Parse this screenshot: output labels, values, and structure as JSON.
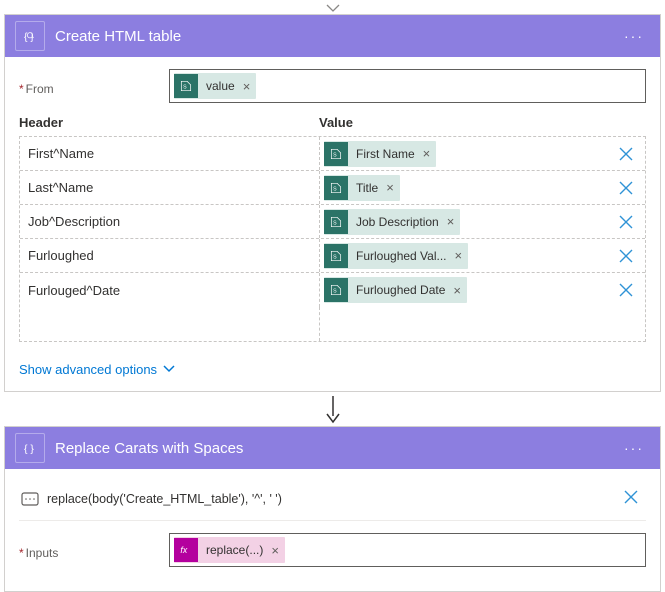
{
  "colors": {
    "header_bg": "#8c7ee0",
    "sharepoint_bg": "#2b7367",
    "sharepoint_token_bg": "#d7e8e4",
    "fx_bg": "#b4009e",
    "fx_token_bg": "#f3d1e5",
    "link": "#0078d4",
    "delete_x": "#2f93d6"
  },
  "action1": {
    "title": "Create HTML table",
    "from_label": "From",
    "from_token": "value",
    "header_col_label": "Header",
    "value_col_label": "Value",
    "rows": [
      {
        "header": "First^Name",
        "value_token": "First Name"
      },
      {
        "header": "Last^Name",
        "value_token": "Title"
      },
      {
        "header": "Job^Description",
        "value_token": "Job Description"
      },
      {
        "header": "Furloughed",
        "value_token": "Furloughed Val..."
      },
      {
        "header": "Furlouged^Date",
        "value_token": "Furloughed Date"
      }
    ],
    "advanced_link": "Show advanced options"
  },
  "action2": {
    "title": "Replace Carats with Spaces",
    "expression": "replace(body('Create_HTML_table'), '^', ' ')",
    "inputs_label": "Inputs",
    "inputs_token": "replace(...)"
  }
}
